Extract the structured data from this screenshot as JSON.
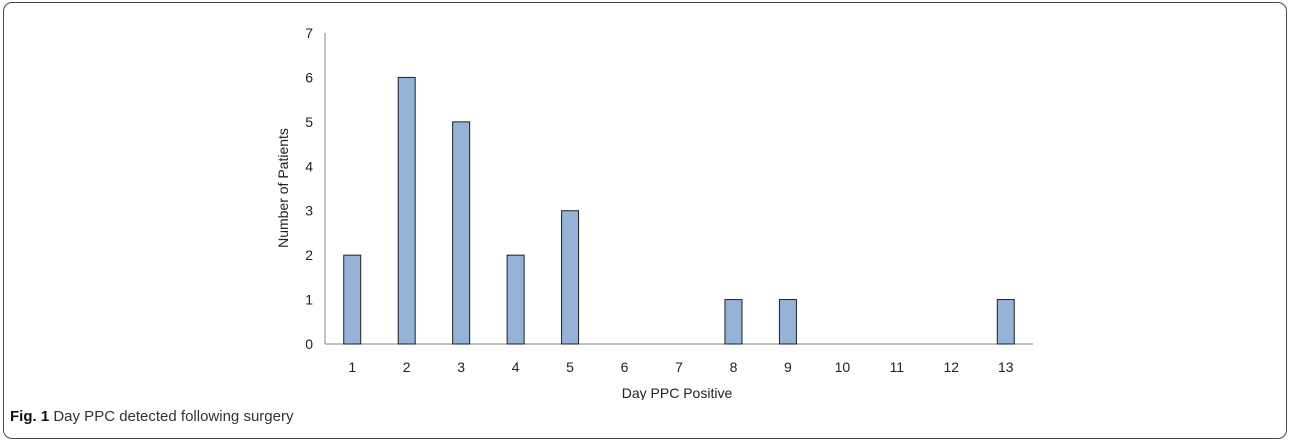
{
  "chart_data": {
    "type": "bar",
    "categories": [
      "1",
      "2",
      "3",
      "4",
      "5",
      "6",
      "7",
      "8",
      "9",
      "10",
      "11",
      "12",
      "13"
    ],
    "values": [
      2,
      6,
      5,
      2,
      3,
      0,
      0,
      1,
      1,
      0,
      0,
      0,
      1
    ],
    "xlabel": "Day PPC Positive",
    "ylabel": "Number of Patients",
    "ylim": [
      0,
      7
    ],
    "yticks": [
      "0",
      "1",
      "2",
      "3",
      "4",
      "5",
      "6",
      "7"
    ],
    "grid": false,
    "colors": {
      "bar_fill": "#95b3d7",
      "bar_stroke": "#1f1f1f",
      "axis": "#868686"
    }
  },
  "caption": {
    "label": "Fig. 1",
    "text": "Day PPC detected following surgery"
  }
}
